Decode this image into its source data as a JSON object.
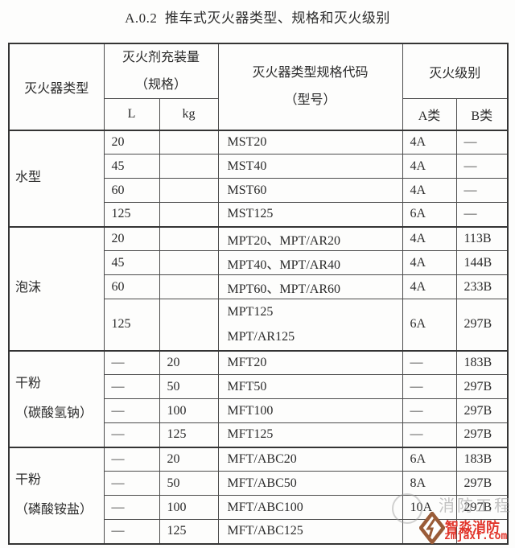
{
  "title": "A.0.2  推车式灭火器类型、规格和灭火级别",
  "table": {
    "headers": {
      "type": "灭火器类型",
      "charge_group": "灭火剂充装量\n（规格）",
      "charge_l": "L",
      "charge_kg": "kg",
      "code_group": "灭火器类型规格代码\n（型号）",
      "level_group": "灭火级别",
      "level_a": "A类",
      "level_b": "B类"
    },
    "sections": [
      {
        "type": "水型",
        "rows": [
          {
            "l": "20",
            "kg": "",
            "code": "MST20",
            "a": "4A",
            "b": "—"
          },
          {
            "l": "45",
            "kg": "",
            "code": "MST40",
            "a": "4A",
            "b": "—"
          },
          {
            "l": "60",
            "kg": "",
            "code": "MST60",
            "a": "4A",
            "b": "—"
          },
          {
            "l": "125",
            "kg": "",
            "code": "MST125",
            "a": "6A",
            "b": "—"
          }
        ]
      },
      {
        "type": "泡沫",
        "rows": [
          {
            "l": "20",
            "kg": "",
            "code": "MPT20、MPT/AR20",
            "a": "4A",
            "b": "113B"
          },
          {
            "l": "45",
            "kg": "",
            "code": "MPT40、MPT/AR40",
            "a": "4A",
            "b": "144B"
          },
          {
            "l": "60",
            "kg": "",
            "code": "MPT60、MPT/AR60",
            "a": "4A",
            "b": "233B"
          },
          {
            "l": "125",
            "kg": "",
            "code": "MPT125\nMPT/AR125",
            "a": "6A",
            "b": "297B"
          }
        ]
      },
      {
        "type": "干粉\n（碳酸氢钠）",
        "rows": [
          {
            "l": "—",
            "kg": "20",
            "code": "MFT20",
            "a": "—",
            "b": "183B"
          },
          {
            "l": "—",
            "kg": "50",
            "code": "MFT50",
            "a": "—",
            "b": "297B"
          },
          {
            "l": "—",
            "kg": "100",
            "code": "MFT100",
            "a": "—",
            "b": "297B"
          },
          {
            "l": "—",
            "kg": "125",
            "code": "MFT125",
            "a": "—",
            "b": "297B"
          }
        ]
      },
      {
        "type": "干粉\n（磷酸铵盐）",
        "rows": [
          {
            "l": "—",
            "kg": "20",
            "code": "MFT/ABC20",
            "a": "6A",
            "b": "183B"
          },
          {
            "l": "—",
            "kg": "50",
            "code": "MFT/ABC50",
            "a": "8A",
            "b": "297B"
          },
          {
            "l": "—",
            "kg": "100",
            "code": "MFT/ABC100",
            "a": "10A",
            "b": "297B"
          },
          {
            "l": "—",
            "kg": "125",
            "code": "MFT/ABC125",
            "a": "",
            "b": ""
          }
        ]
      }
    ]
  },
  "watermark": {
    "brand": "智淼消防",
    "url": "zmjaxf.com",
    "faint_text": "消防工程",
    "brand_color": "#e2352b",
    "logo_color": "#9a5c38"
  }
}
